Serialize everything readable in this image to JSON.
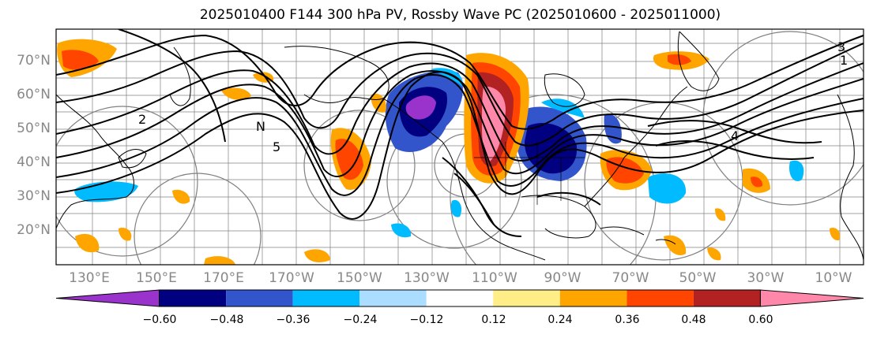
{
  "title": "2025010400 F144 300 hPa PV, Rossby Wave PC (2025010600 - 2025011000)",
  "map": {
    "lat_labels": [
      "70°N",
      "60°N",
      "50°N",
      "40°N",
      "30°N",
      "20°N"
    ],
    "lon_labels": [
      "130°E",
      "150°E",
      "170°E",
      "170°W",
      "150°W",
      "130°W",
      "110°W",
      "90°W",
      "70°W",
      "50°W",
      "30°W",
      "10°W"
    ],
    "contour_labels": [
      "1",
      "2",
      "3",
      "4",
      "5",
      "N"
    ],
    "graticule_color": "#808080"
  },
  "colorbar": {
    "labels": [
      "−0.60",
      "−0.48",
      "−0.36",
      "−0.24",
      "−0.12",
      "0.12",
      "0.24",
      "0.36",
      "0.48",
      "0.60"
    ],
    "levels": [
      -0.6,
      -0.48,
      -0.36,
      -0.24,
      -0.12,
      0.12,
      0.24,
      0.36,
      0.48,
      0.6
    ],
    "colors": [
      "#9933cc",
      "#000080",
      "#3355cc",
      "#00bbff",
      "#aaddff",
      "#ffffff",
      "#ffee88",
      "#ffa500",
      "#ff4500",
      "#b22222",
      "#ff88aa"
    ]
  }
}
